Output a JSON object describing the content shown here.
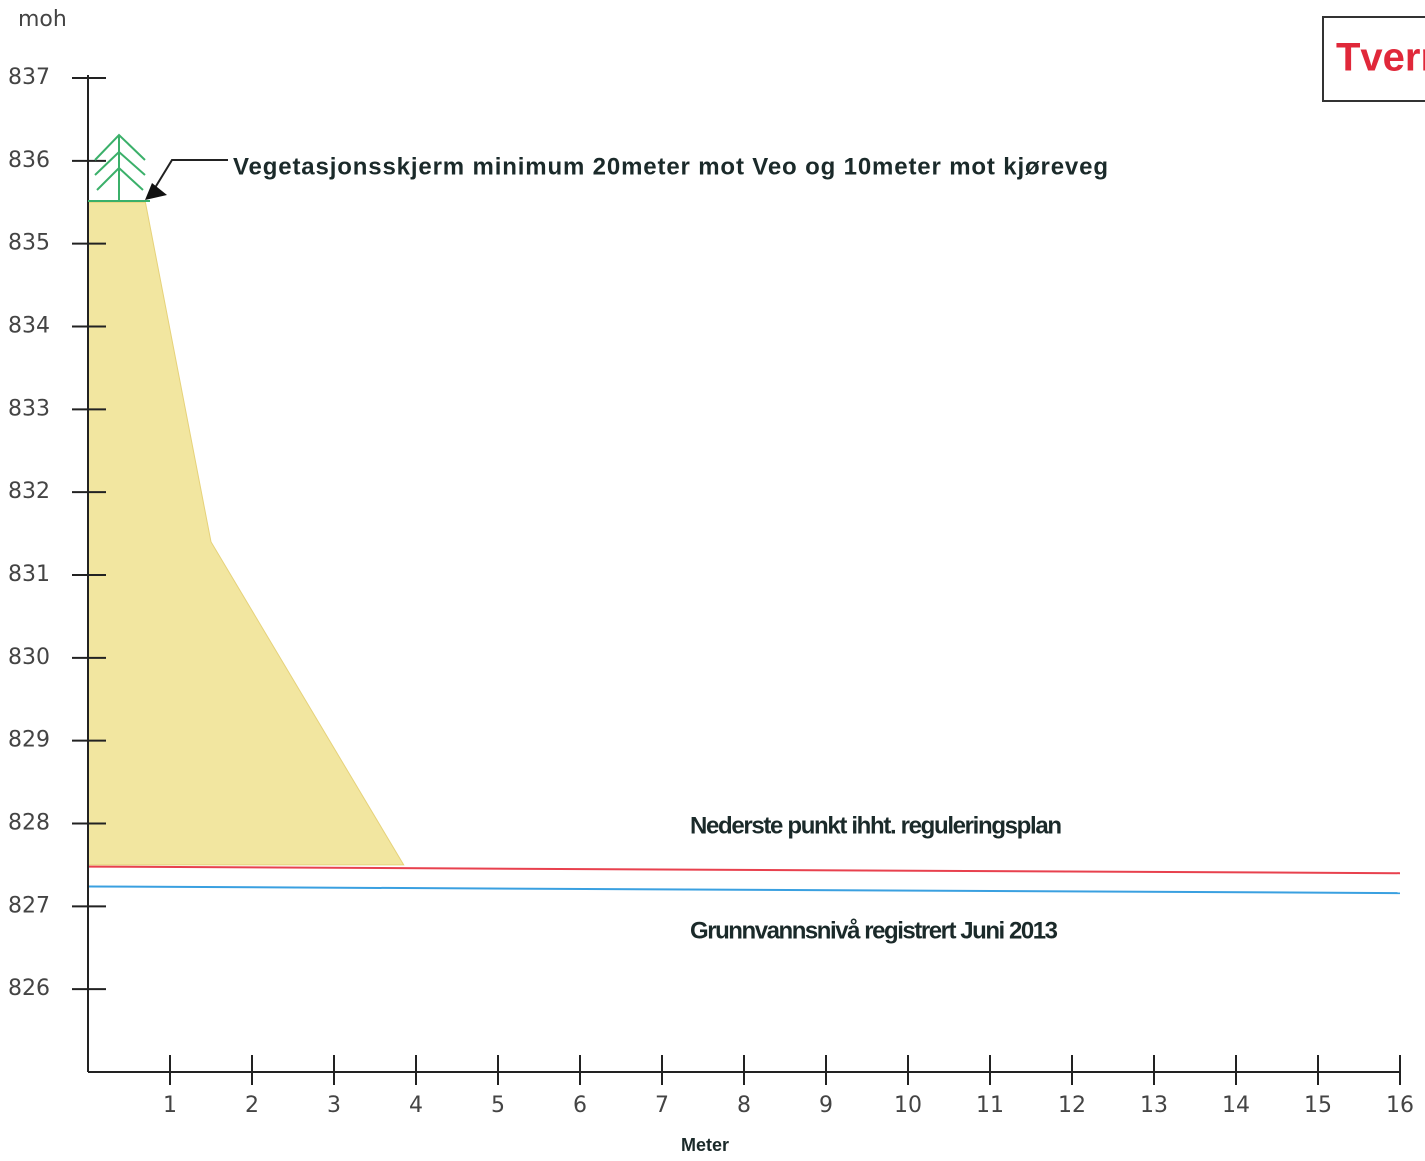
{
  "chart_data": {
    "type": "line",
    "title": "Tverr",
    "ylabel": "moh",
    "xlabel": "Meter",
    "xlim": [
      0,
      16
    ],
    "ylim": [
      825,
      837
    ],
    "xticks": [
      1,
      2,
      3,
      4,
      5,
      6,
      7,
      8,
      9,
      10,
      11,
      12,
      13,
      14,
      15,
      16
    ],
    "yticks": [
      826,
      827,
      828,
      829,
      830,
      831,
      832,
      833,
      834,
      835,
      836,
      837
    ],
    "series": [
      {
        "color": "#f2e6a0",
        "fill": true,
        "x": [
          0,
          0.7,
          1.5,
          3.85,
          0
        ],
        "values": [
          835.5,
          835.5,
          831.4,
          827.5,
          827.5
        ]
      },
      {
        "color": "#e8414e",
        "x": [
          0,
          16
        ],
        "values": [
          827.48,
          827.4
        ]
      },
      {
        "color": "#3aa0e0",
        "x": [
          0,
          16
        ],
        "values": [
          827.24,
          827.16
        ]
      }
    ],
    "annotations": [
      "Vegetasjonsskjerm minimum 20meter mot Veo og 10meter mot kjøreveg",
      "Nederste punkt ihht. reguleringsplan",
      "Grunnvannsnivå registrert Juni 2013"
    ]
  }
}
